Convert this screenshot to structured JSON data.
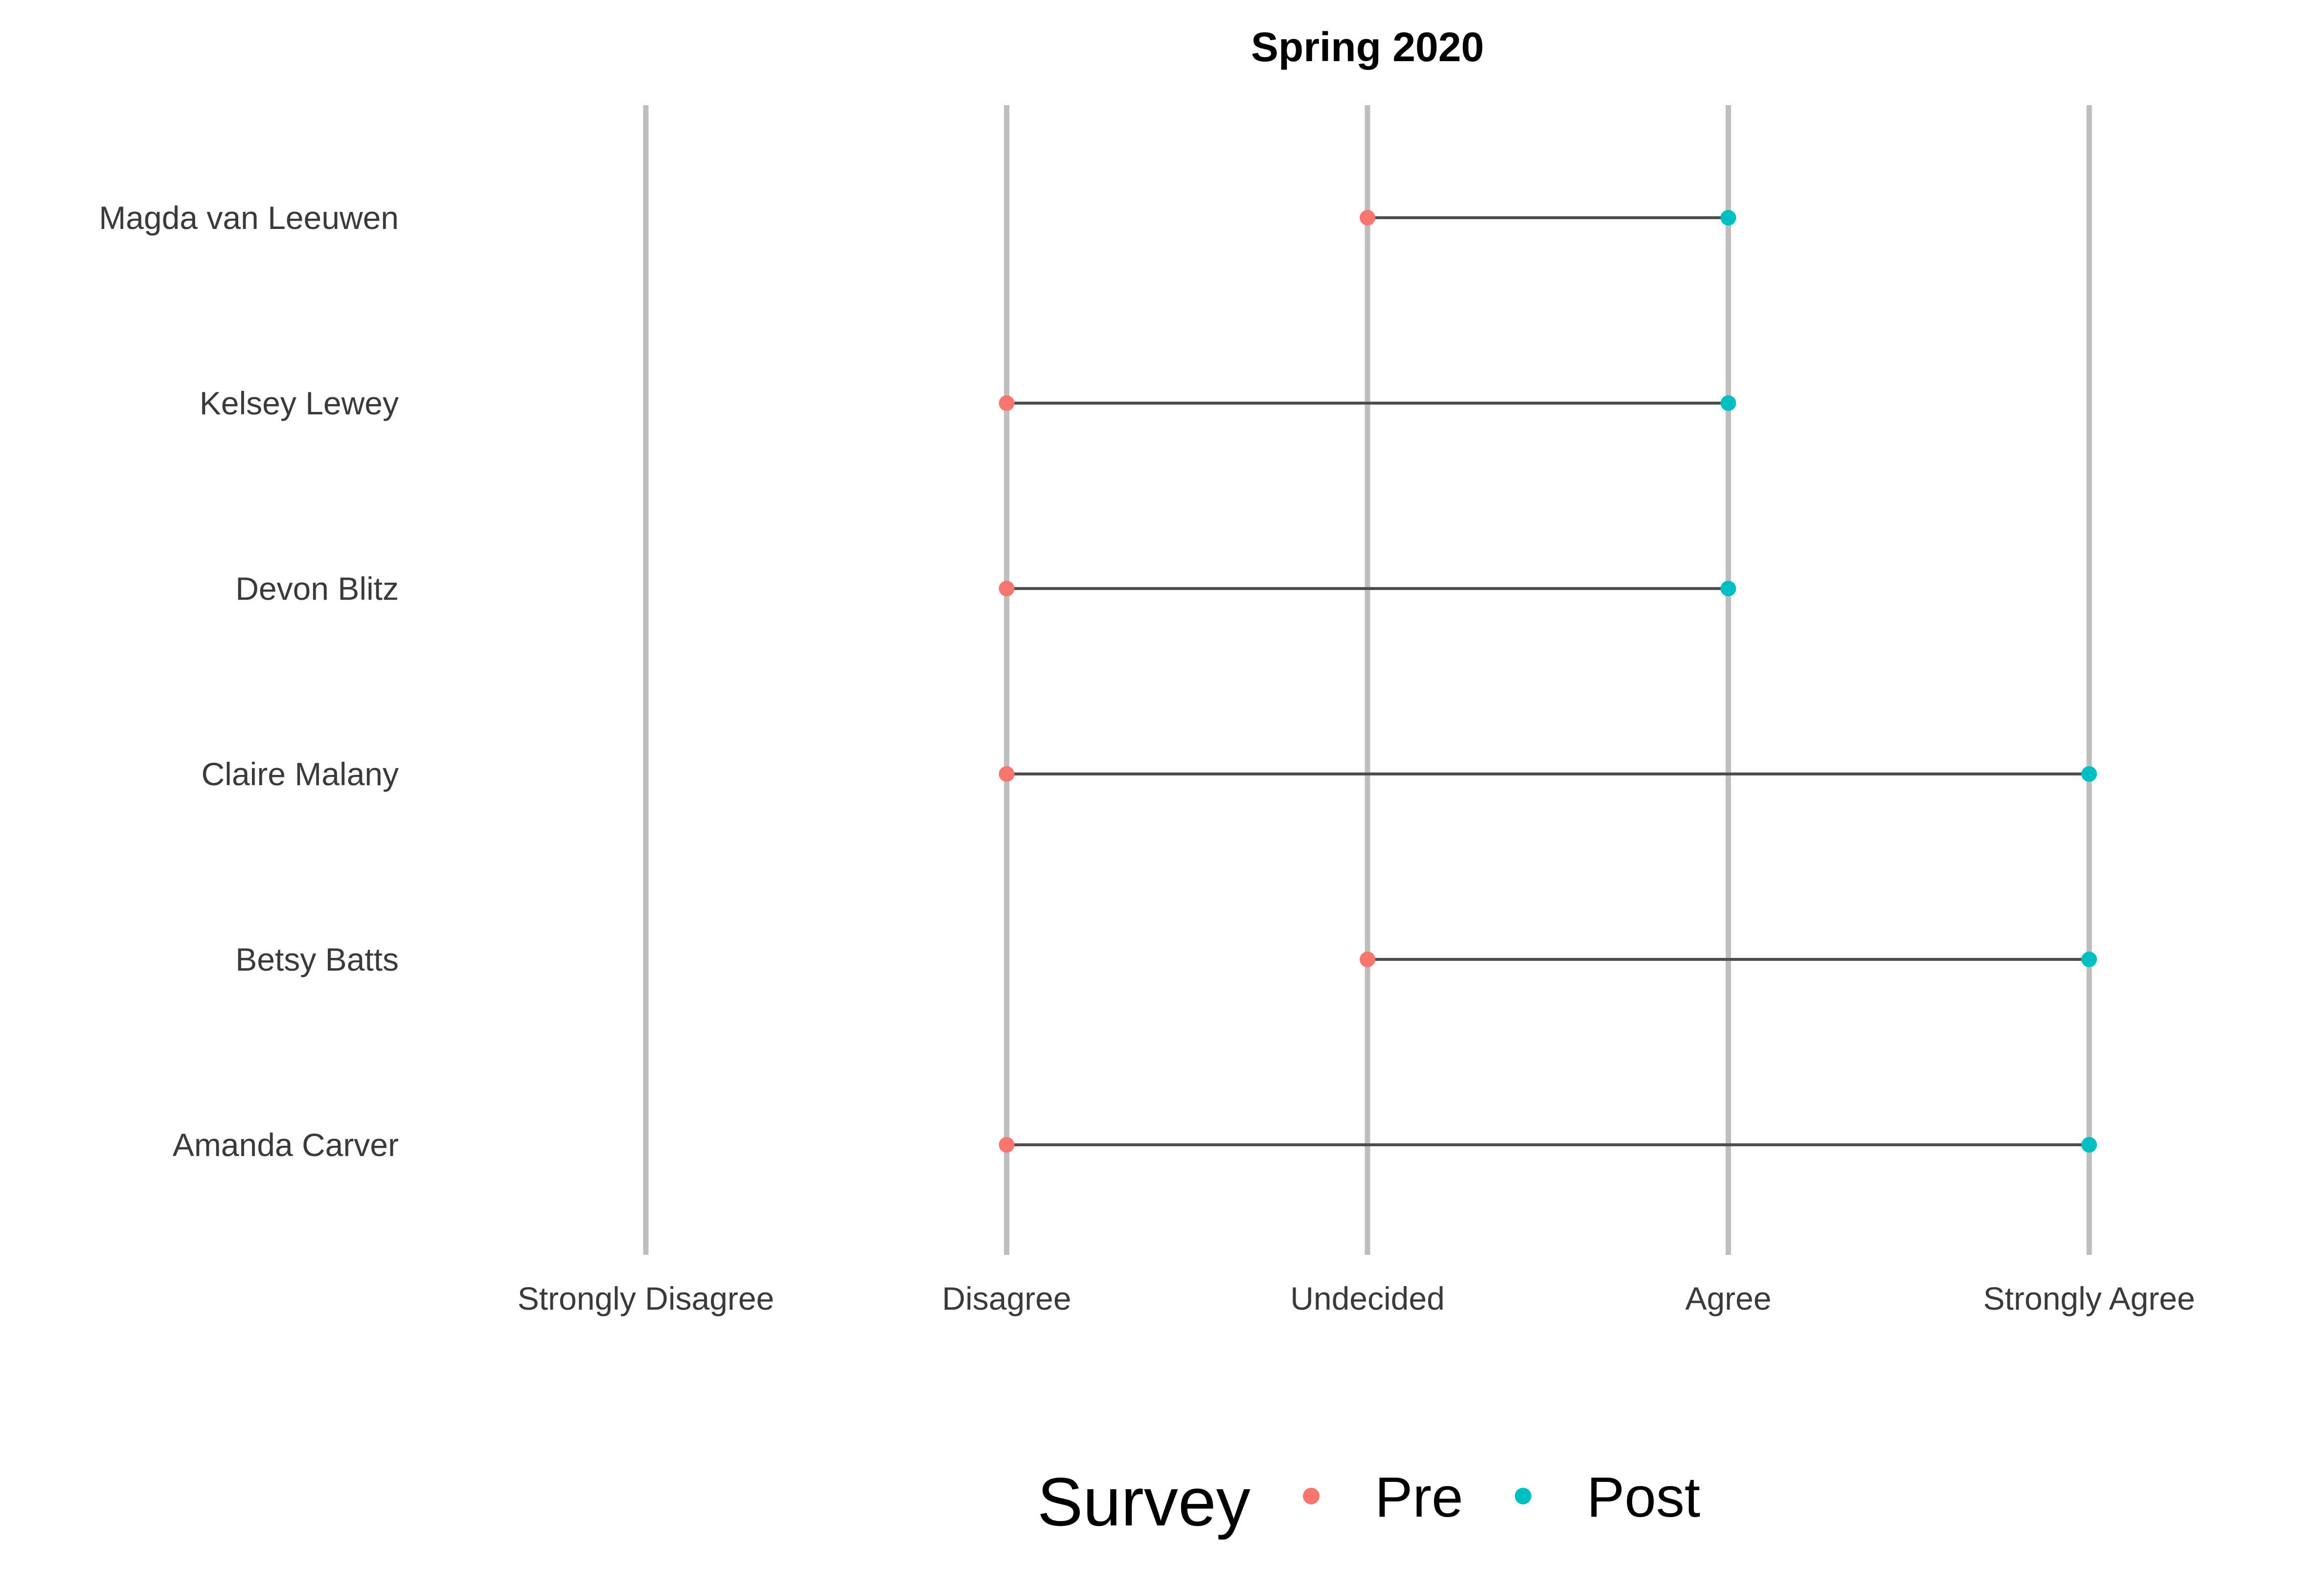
{
  "chart_data": {
    "type": "dumbbell",
    "title": "Spring 2020",
    "xlabel": "",
    "ylabel": "",
    "x_categories": [
      "Strongly Disagree",
      "Disagree",
      "Undecided",
      "Agree",
      "Strongly Agree"
    ],
    "grid": "vertical major lines only",
    "rows": [
      {
        "name": "Magda van Leeuwen",
        "pre": "Undecided",
        "post": "Agree"
      },
      {
        "name": "Kelsey Lewey",
        "pre": "Disagree",
        "post": "Agree"
      },
      {
        "name": "Devon Blitz",
        "pre": "Disagree",
        "post": "Agree"
      },
      {
        "name": "Claire Malany",
        "pre": "Disagree",
        "post": "Strongly Agree"
      },
      {
        "name": "Betsy Batts",
        "pre": "Undecided",
        "post": "Strongly Agree"
      },
      {
        "name": "Amanda Carver",
        "pre": "Disagree",
        "post": "Strongly Agree"
      }
    ],
    "legend": {
      "title": "Survey",
      "placement": "bottom",
      "entries": [
        {
          "name": "Pre",
          "color": "#F8766D"
        },
        {
          "name": "Post",
          "color": "#00BFC4"
        }
      ]
    },
    "colors": {
      "pre": "#F8766D",
      "post": "#00BFC4",
      "segment": "#4d4d4d",
      "grid": "#bebebe"
    }
  }
}
